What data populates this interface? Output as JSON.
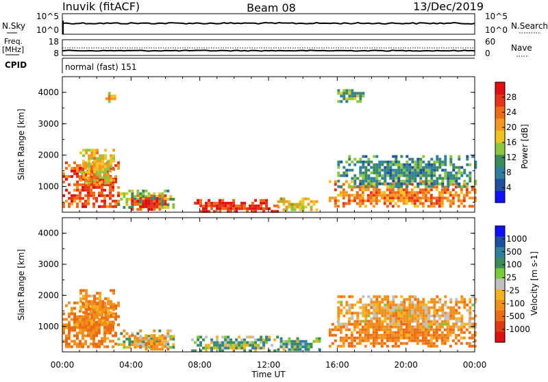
{
  "header": {
    "station": "Inuvik (fitACF)",
    "beam": "Beam 08",
    "date": "13/Dec/2019"
  },
  "labels": {
    "nsky": "N.Sky",
    "nsearch": "N.Search",
    "freq": "Freq.",
    "freq_unit": "[MHz]",
    "nave": "Nave",
    "cpid": "CPID",
    "cpid_value": "normal (fast) 151",
    "nsky_top": "10^5",
    "nsky_bottom": "10^0",
    "nsearch_top": "10^5",
    "nsearch_bottom": "10^0",
    "freq_top": "18",
    "freq_bottom": "8",
    "nave_top": "60",
    "nave_bottom": "0",
    "xlabel": "Time UT",
    "power_ylabel": "Slant Range [km]",
    "velocity_ylabel": "Slant Range [km]",
    "power_cbar_label": "Power [dB]",
    "velocity_cbar_label": "Velocity [m s-1]"
  },
  "colors": {
    "power_scale": [
      "#1010ff",
      "#2050a0",
      "#2f7f9f",
      "#3c8c5a",
      "#8cc63f",
      "#f0c420",
      "#f39a1e",
      "#ef6a14",
      "#e6331a",
      "#e01010"
    ],
    "velocity_scale": [
      "#1010ff",
      "#2050a0",
      "#2f7f9f",
      "#3c8c5a",
      "#7acb3a",
      "#c0c0c0",
      "#f5b21e",
      "#f0901c",
      "#ec6c14",
      "#e03a14",
      "#e01010"
    ]
  },
  "chart_data": [
    {
      "type": "heatmap",
      "name": "power",
      "ylabel": "Slant Range [km]",
      "xlabel": "Time UT",
      "x_ticks": [
        "00:00",
        "04:00",
        "08:00",
        "12:00",
        "16:00",
        "20:00",
        "00:00"
      ],
      "xlim_hours": [
        0,
        24
      ],
      "y_ticks": [
        1000,
        2000,
        3000,
        4000
      ],
      "ylim": [
        180,
        4500
      ],
      "colorbar": {
        "label": "Power [dB]",
        "ticks": [
          4,
          8,
          12,
          16,
          20,
          24,
          28
        ],
        "range": [
          0,
          32
        ]
      },
      "regions": [
        {
          "t0": 0.0,
          "t1": 3.2,
          "r0": 350,
          "r1": 1800,
          "value": 26
        },
        {
          "t0": 1.0,
          "t1": 3.0,
          "r0": 1100,
          "r1": 2200,
          "value": 18
        },
        {
          "t0": 3.2,
          "t1": 6.5,
          "r0": 300,
          "r1": 900,
          "value": 14
        },
        {
          "t0": 4.0,
          "t1": 6.2,
          "r0": 250,
          "r1": 750,
          "value": 27
        },
        {
          "t0": 7.5,
          "t1": 12.5,
          "r0": 200,
          "r1": 600,
          "value": 28
        },
        {
          "t0": 12.5,
          "t1": 15.0,
          "r0": 250,
          "r1": 650,
          "value": 18
        },
        {
          "t0": 15.5,
          "t1": 24.0,
          "r0": 400,
          "r1": 1200,
          "value": 22
        },
        {
          "t0": 16.0,
          "t1": 24.0,
          "r0": 1000,
          "r1": 2000,
          "value": 10
        },
        {
          "t0": 2.5,
          "t1": 3.0,
          "r0": 3700,
          "r1": 4100,
          "value": 18
        },
        {
          "t0": 16.0,
          "t1": 17.5,
          "r0": 3700,
          "r1": 4100,
          "value": 12
        }
      ]
    },
    {
      "type": "heatmap",
      "name": "velocity",
      "ylabel": "Slant Range [km]",
      "xlabel": "Time UT",
      "x_ticks": [
        "00:00",
        "04:00",
        "08:00",
        "12:00",
        "16:00",
        "20:00",
        "00:00"
      ],
      "xlim_hours": [
        0,
        24
      ],
      "y_ticks": [
        1000,
        2000,
        3000,
        4000
      ],
      "ylim": [
        180,
        4500
      ],
      "colorbar": {
        "label": "Velocity [m s-1]",
        "ticks": [
          1000,
          500,
          100,
          25,
          -25,
          -100,
          -500,
          -1000
        ]
      },
      "regions": [
        {
          "t0": 0.0,
          "t1": 3.2,
          "r0": 350,
          "r1": 1800,
          "value": -200
        },
        {
          "t0": 1.0,
          "t1": 3.0,
          "r0": 1100,
          "r1": 2200,
          "value": -150
        },
        {
          "t0": 3.2,
          "t1": 6.5,
          "r0": 300,
          "r1": 900,
          "value": 0
        },
        {
          "t0": 4.0,
          "t1": 6.2,
          "r0": 250,
          "r1": 750,
          "value": -120
        },
        {
          "t0": 7.5,
          "t1": 12.5,
          "r0": 200,
          "r1": 700,
          "value": 60
        },
        {
          "t0": 12.5,
          "t1": 15.0,
          "r0": 250,
          "r1": 650,
          "value": 90
        },
        {
          "t0": 15.5,
          "t1": 24.0,
          "r0": 400,
          "r1": 1200,
          "value": -200
        },
        {
          "t0": 16.0,
          "t1": 24.0,
          "r0": 1000,
          "r1": 2000,
          "value": -90
        }
      ]
    }
  ]
}
